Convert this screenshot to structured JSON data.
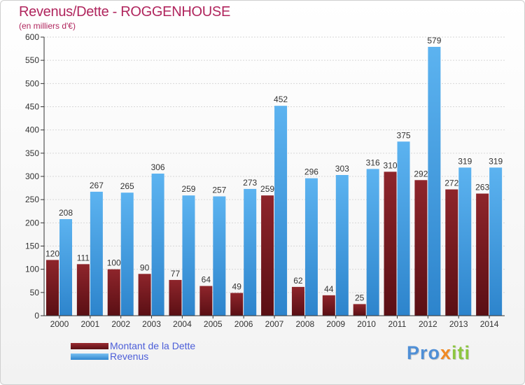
{
  "header": {
    "title": "Revenus/Dette - ROGGENHOUSE",
    "subtitle": "(en milliers d'€)"
  },
  "legend": {
    "debt_label": "Montant de la Dette",
    "revenue_label": "Revenus"
  },
  "logo": {
    "part1": "Pro",
    "part2": "x",
    "part3": "iti"
  },
  "colors": {
    "debt": "#7a1a1f",
    "revenue": "#47a3e8",
    "title": "#b0255d",
    "legend_text": "#4c5ed8"
  },
  "chart_data": {
    "type": "bar",
    "title": "Revenus/Dette - ROGGENHOUSE",
    "subtitle": "(en milliers d'€)",
    "categories": [
      "2000",
      "2001",
      "2002",
      "2003",
      "2004",
      "2005",
      "2006",
      "2007",
      "2008",
      "2009",
      "2010",
      "2011",
      "2012",
      "2013",
      "2014"
    ],
    "series": [
      {
        "name": "Montant de la Dette",
        "color": "#7a1a1f",
        "values": [
          120,
          111,
          100,
          90,
          77,
          64,
          49,
          259,
          62,
          44,
          25,
          310,
          292,
          272,
          263
        ]
      },
      {
        "name": "Revenus",
        "color": "#47a3e8",
        "values": [
          208,
          267,
          265,
          306,
          259,
          257,
          273,
          452,
          296,
          303,
          316,
          375,
          579,
          319,
          319
        ]
      }
    ],
    "ylim": [
      0,
      600
    ],
    "yticks": [
      0,
      50,
      100,
      150,
      200,
      250,
      300,
      350,
      400,
      450,
      500,
      550,
      600
    ],
    "grid": true,
    "legend_position": "bottom-left"
  }
}
